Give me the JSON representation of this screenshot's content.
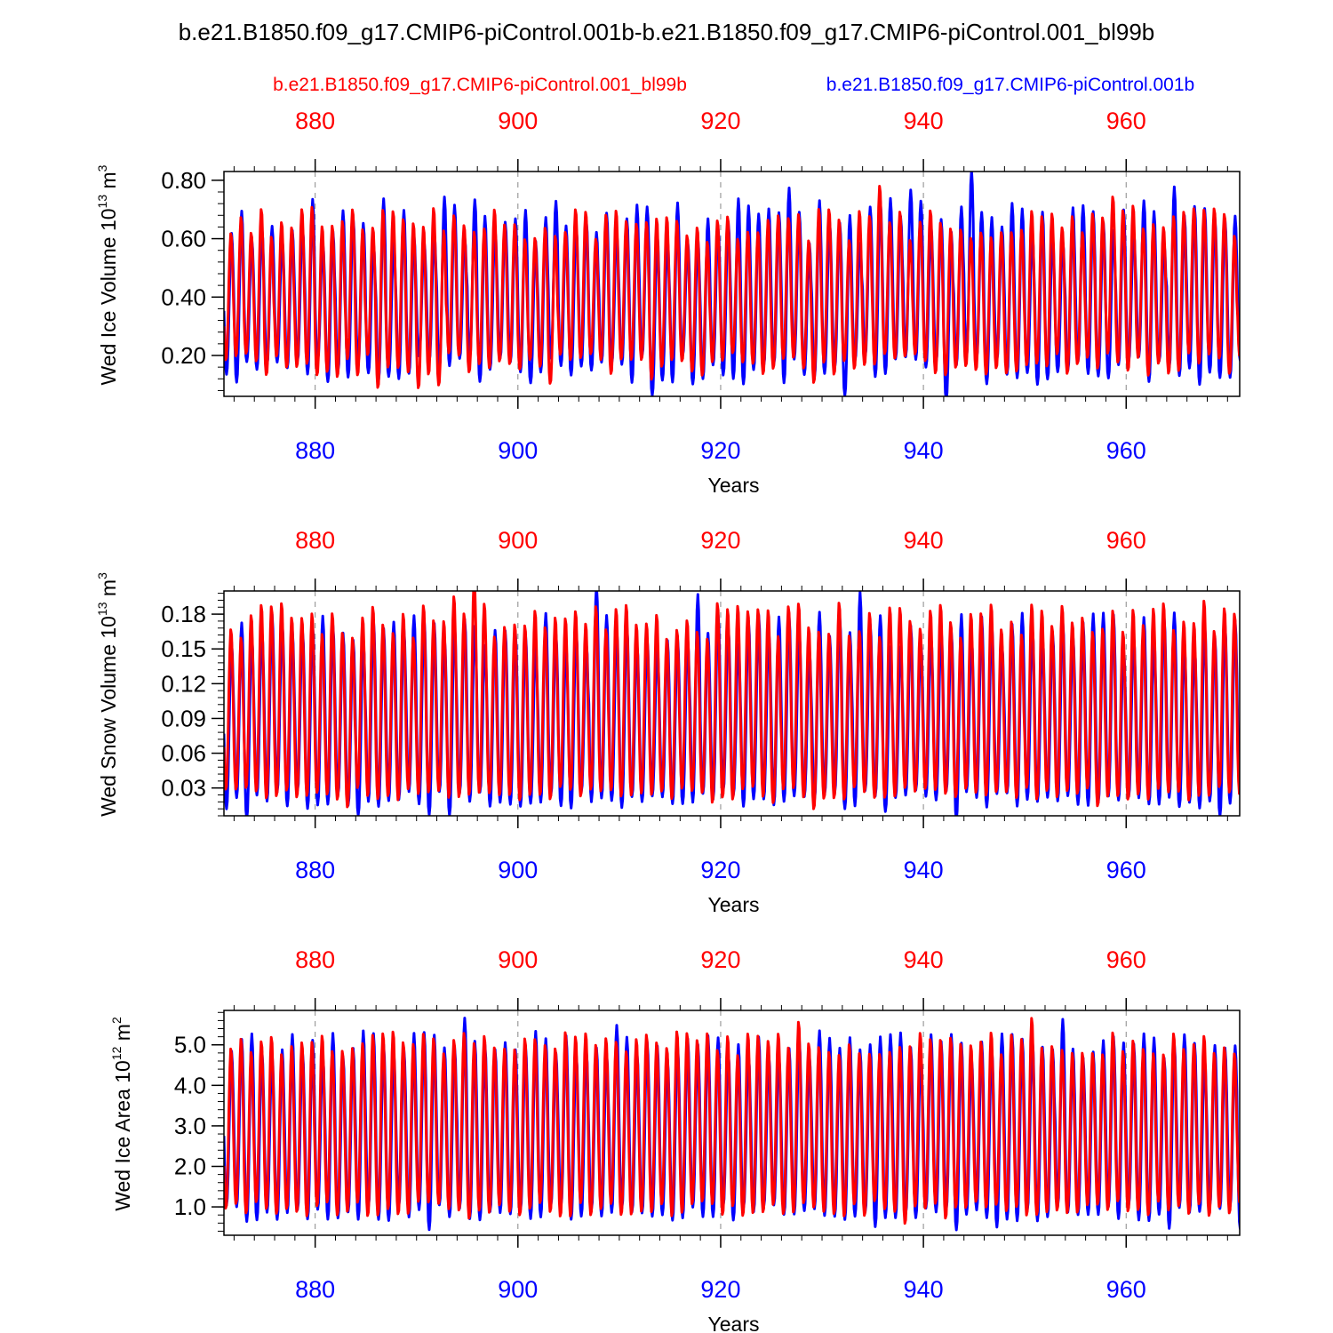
{
  "title": "b.e21.B1850.f09_g17.CMIP6-piControl.001b-b.e21.B1850.f09_g17.CMIP6-piControl.001_bl99b",
  "legend": {
    "red_label": "b.e21.B1850.f09_g17.CMIP6-piControl.001_bl99b",
    "blue_label": "b.e21.B1850.f09_g17.CMIP6-piControl.001b"
  },
  "colors": {
    "red": "#ff0000",
    "blue": "#0000ff",
    "axis": "#000000"
  },
  "chart_data": [
    {
      "type": "line",
      "ylabel_main": "Wed Ice Volume 10",
      "ylabel_exp": "13",
      "ylabel_unit": " m",
      "ylabel_unit_exp": "3",
      "xlabel": "Years",
      "xlim": [
        871,
        971.2
      ],
      "ylim": [
        0.06,
        0.83
      ],
      "yticks": [
        "0.20",
        "0.40",
        "0.60",
        "0.80"
      ],
      "ytick_values": [
        0.2,
        0.4,
        0.6,
        0.8
      ],
      "xticks_top": [
        "880",
        "900",
        "920",
        "940",
        "960"
      ],
      "xticks_bottom": [
        "880",
        "900",
        "920",
        "940",
        "960"
      ],
      "xtick_values": [
        880,
        900,
        920,
        940,
        960
      ],
      "series": [
        {
          "name": "b.e21.B1850.f09_g17.CMIP6-piControl.001b",
          "color": "blue",
          "min_typical": 0.15,
          "max_typical": 0.66,
          "var_max": 0.08,
          "var_min": 0.05,
          "seed": 11
        },
        {
          "name": "b.e21.B1850.f09_g17.CMIP6-piControl.001_bl99b",
          "color": "red",
          "min_typical": 0.17,
          "max_typical": 0.65,
          "var_max": 0.06,
          "var_min": 0.04,
          "seed": 29
        }
      ]
    },
    {
      "type": "line",
      "ylabel_main": "Wed Snow Volume 10",
      "ylabel_exp": "13",
      "ylabel_unit": " m",
      "ylabel_unit_exp": "3",
      "xlabel": "Years",
      "xlim": [
        871,
        971.2
      ],
      "ylim": [
        0.006,
        0.2
      ],
      "yticks": [
        "0.03",
        "0.06",
        "0.09",
        "0.12",
        "0.15",
        "0.18"
      ],
      "ytick_values": [
        0.03,
        0.06,
        0.09,
        0.12,
        0.15,
        0.18
      ],
      "xticks_top": [
        "880",
        "900",
        "920",
        "940",
        "960"
      ],
      "xticks_bottom": [
        "880",
        "900",
        "920",
        "940",
        "960"
      ],
      "xtick_values": [
        880,
        900,
        920,
        940,
        960
      ],
      "series": [
        {
          "name": "b.e21.B1850.f09_g17.CMIP6-piControl.001b",
          "color": "blue",
          "min_typical": 0.02,
          "max_typical": 0.165,
          "var_max": 0.018,
          "var_min": 0.008,
          "seed": 47
        },
        {
          "name": "b.e21.B1850.f09_g17.CMIP6-piControl.001_bl99b",
          "color": "red",
          "min_typical": 0.025,
          "max_typical": 0.175,
          "var_max": 0.016,
          "var_min": 0.006,
          "seed": 73
        }
      ]
    },
    {
      "type": "line",
      "ylabel_main": "Wed Ice Area 10",
      "ylabel_exp": "12",
      "ylabel_unit": " m",
      "ylabel_unit_exp": "2",
      "xlabel": "Years",
      "xlim": [
        871,
        971.2
      ],
      "ylim": [
        0.3,
        5.85
      ],
      "yticks": [
        "1.0",
        "2.0",
        "3.0",
        "4.0",
        "5.0"
      ],
      "ytick_values": [
        1.0,
        2.0,
        3.0,
        4.0,
        5.0
      ],
      "xticks_top": [
        "880",
        "900",
        "920",
        "940",
        "960"
      ],
      "xticks_bottom": [
        "880",
        "900",
        "920",
        "940",
        "960"
      ],
      "xtick_values": [
        880,
        900,
        920,
        940,
        960
      ],
      "series": [
        {
          "name": "b.e21.B1850.f09_g17.CMIP6-piControl.001b",
          "color": "blue",
          "min_typical": 0.85,
          "max_typical": 5.0,
          "var_max": 0.35,
          "var_min": 0.2,
          "seed": 101
        },
        {
          "name": "b.e21.B1850.f09_g17.CMIP6-piControl.001_bl99b",
          "color": "red",
          "min_typical": 0.95,
          "max_typical": 5.05,
          "var_max": 0.3,
          "var_min": 0.2,
          "seed": 131
        }
      ]
    }
  ]
}
